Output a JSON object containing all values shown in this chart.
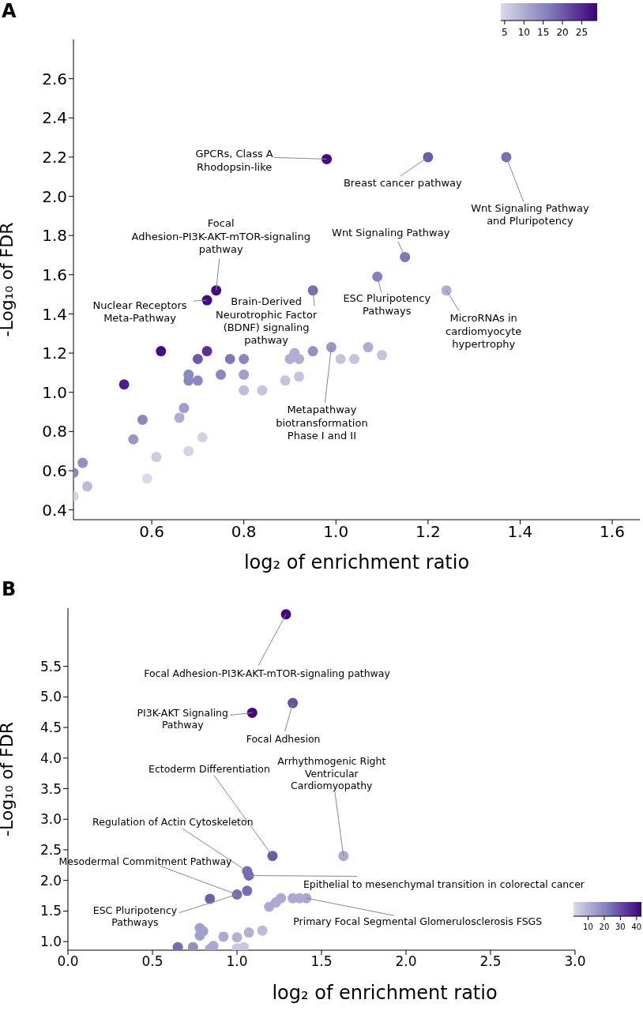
{
  "chart_data": [
    {
      "type": "scatter",
      "title": "A",
      "xlabel": "log₂ of enrichment ratio",
      "ylabel": "-Log₁₀ of FDR",
      "marker": "circle",
      "xlim": [
        0.43,
        1.66
      ],
      "xticks": [
        0.6,
        0.8,
        {
          "value": 1,
          "label": "1.0"
        },
        1.2,
        1.4,
        1.6
      ],
      "ylim": [
        0.35,
        2.8
      ],
      "yticks": [
        0.4,
        0.6,
        0.8,
        {
          "value": 1,
          "label": "1.0"
        },
        1.2,
        1.4,
        1.6,
        1.8,
        {
          "value": 2,
          "label": "2.0"
        },
        2.2,
        2.4,
        2.6
      ],
      "clim": [
        4,
        29
      ],
      "cticks": [
        5,
        10,
        15,
        20,
        25
      ],
      "x": [
        0.98,
        1.2,
        1.37,
        1.15,
        1.09,
        1.24,
        0.95,
        0.74,
        0.72,
        0.62,
        0.72,
        0.7,
        0.77,
        0.8,
        0.9,
        0.91,
        0.92,
        0.95,
        0.99,
        1.01,
        1.04,
        1.07,
        1.1,
        0.54,
        0.68,
        0.68,
        0.7,
        0.75,
        0.8,
        0.89,
        0.92,
        0.8,
        0.84,
        0.67,
        0.66,
        0.58,
        0.56,
        0.71,
        0.68,
        0.61,
        0.59,
        0.45,
        0.43,
        0.46,
        0.43
      ],
      "values": [
        2.19,
        2.2,
        2.2,
        1.69,
        1.59,
        1.52,
        1.52,
        1.52,
        1.47,
        1.21,
        1.21,
        1.17,
        1.17,
        1.17,
        1.17,
        1.2,
        1.17,
        1.21,
        1.23,
        1.17,
        1.17,
        1.23,
        1.19,
        1.04,
        1.09,
        1.06,
        1.06,
        1.09,
        1.09,
        1.06,
        1.08,
        1.01,
        1.01,
        0.92,
        0.87,
        0.86,
        0.76,
        0.77,
        0.7,
        0.67,
        0.56,
        0.64,
        0.59,
        0.52,
        0.47
      ],
      "cvalues": [
        28,
        20,
        18,
        17,
        16,
        10,
        18,
        28,
        28,
        28,
        24,
        20,
        17,
        15,
        10,
        10,
        10,
        14,
        13,
        7,
        7,
        10,
        7,
        26,
        15,
        15,
        15,
        15,
        12,
        7,
        7,
        8,
        7,
        12,
        10,
        15,
        13,
        5,
        5,
        6,
        4,
        14,
        15,
        8,
        5
      ],
      "annotations": [
        {
          "text": "GPCRs, Class A\nRhodopsin-like",
          "x": 0.98,
          "y": 2.19
        },
        {
          "text": "Breast cancer pathway",
          "x": 1.2,
          "y": 2.2
        },
        {
          "text": "Wnt Signaling Pathway\nand Pluripotency",
          "x": 1.37,
          "y": 2.2
        },
        {
          "text": "Wnt Signaling Pathway",
          "x": 1.15,
          "y": 1.69
        },
        {
          "text": "ESC Pluripotency\nPathways",
          "x": 1.09,
          "y": 1.59
        },
        {
          "text": "MicroRNAs in\ncardiomyocyte\nhypertrophy",
          "x": 1.24,
          "y": 1.52
        },
        {
          "text": "Brain-Derived\nNeurotrophic Factor\n(BDNF) signaling\npathway",
          "x": 0.95,
          "y": 1.52
        },
        {
          "text": "Focal\nAdhesion-PI3K-AKT-mTOR-signaling\npathway",
          "x": 0.74,
          "y": 1.52
        },
        {
          "text": "Nuclear Receptors\nMeta-Pathway",
          "x": 0.72,
          "y": 1.47
        },
        {
          "text": "Metapathway\nbiotransformation\nPhase I and II",
          "x": 0.99,
          "y": 1.23
        }
      ]
    },
    {
      "type": "scatter",
      "title": "B",
      "xlabel": "log₂ of enrichment ratio",
      "ylabel": "-Log₁₀ of FDR",
      "marker": "circle",
      "xlim": [
        0,
        3
      ],
      "xticks": [
        {
          "value": 0,
          "label": "0.0"
        },
        0.5,
        {
          "value": 1,
          "label": "1.0"
        },
        1.5,
        {
          "value": 2,
          "label": "2.0"
        },
        2.5,
        {
          "value": 3,
          "label": "3.0"
        }
      ],
      "ylim": [
        0.86,
        6.45
      ],
      "yticks": [
        {
          "value": 1,
          "label": "1.0"
        },
        1.5,
        {
          "value": 2,
          "label": "2.0"
        },
        2.5,
        {
          "value": 3,
          "label": "3.0"
        },
        3.5,
        {
          "value": 4,
          "label": "4.0"
        },
        4.5,
        {
          "value": 5,
          "label": "5.0"
        },
        5.5
      ],
      "clim": [
        1,
        43
      ],
      "cticks": [
        10,
        20,
        30,
        40
      ],
      "x": [
        1.29,
        1.33,
        1.09,
        1.21,
        1.63,
        1.06,
        1.07,
        1.06,
        1.0,
        0.84,
        1.19,
        1.23,
        1.26,
        1.33,
        1.37,
        1.41,
        0.78,
        0.8,
        0.78,
        0.92,
        1.0,
        1.07,
        1.15,
        0.65,
        0.74,
        0.86,
        0.84,
        1.0,
        1.04
      ],
      "values": [
        6.35,
        4.9,
        4.74,
        2.4,
        2.4,
        2.15,
        2.08,
        1.83,
        1.77,
        1.7,
        1.57,
        1.64,
        1.71,
        1.71,
        1.71,
        1.71,
        1.22,
        1.17,
        1.1,
        1.08,
        1.07,
        1.15,
        1.18,
        0.91,
        0.91,
        0.93,
        0.88,
        0.89,
        0.91
      ],
      "cvalues": [
        42,
        30,
        42,
        28,
        12,
        25,
        25,
        25,
        25,
        27,
        12,
        12,
        12,
        12,
        12,
        12,
        14,
        14,
        14,
        12,
        10,
        10,
        8,
        25,
        18,
        12,
        12,
        5,
        5
      ],
      "annotations": [
        {
          "text": "Focal Adhesion-PI3K-AKT-mTOR-signaling pathway",
          "x": 1.29,
          "y": 6.35
        },
        {
          "text": "PI3K-AKT Signaling\nPathway",
          "x": 1.09,
          "y": 4.74
        },
        {
          "text": "Focal Adhesion",
          "x": 1.33,
          "y": 4.9
        },
        {
          "text": "Ectoderm Differentiation",
          "x": 1.21,
          "y": 2.4
        },
        {
          "text": "Arrhythmogenic Right\nVentricular\nCardiomyopathy",
          "x": 1.63,
          "y": 2.4
        },
        {
          "text": "Regulation of Actin Cytoskeleton",
          "x": 1.06,
          "y": 2.15
        },
        {
          "text": "Mesodermal Commitment Pathway",
          "x": 1.0,
          "y": 1.77
        },
        {
          "text": "Epithelial to mesenchymal transition in colorectal cancer",
          "x": 1.07,
          "y": 2.08
        },
        {
          "text": "ESC Pluripotency\nPathways",
          "x": 1.0,
          "y": 1.77
        },
        {
          "text": "Primary Focal Segmental Glomerulosclerosis FSGS",
          "x": 1.41,
          "y": 1.71
        }
      ]
    }
  ]
}
